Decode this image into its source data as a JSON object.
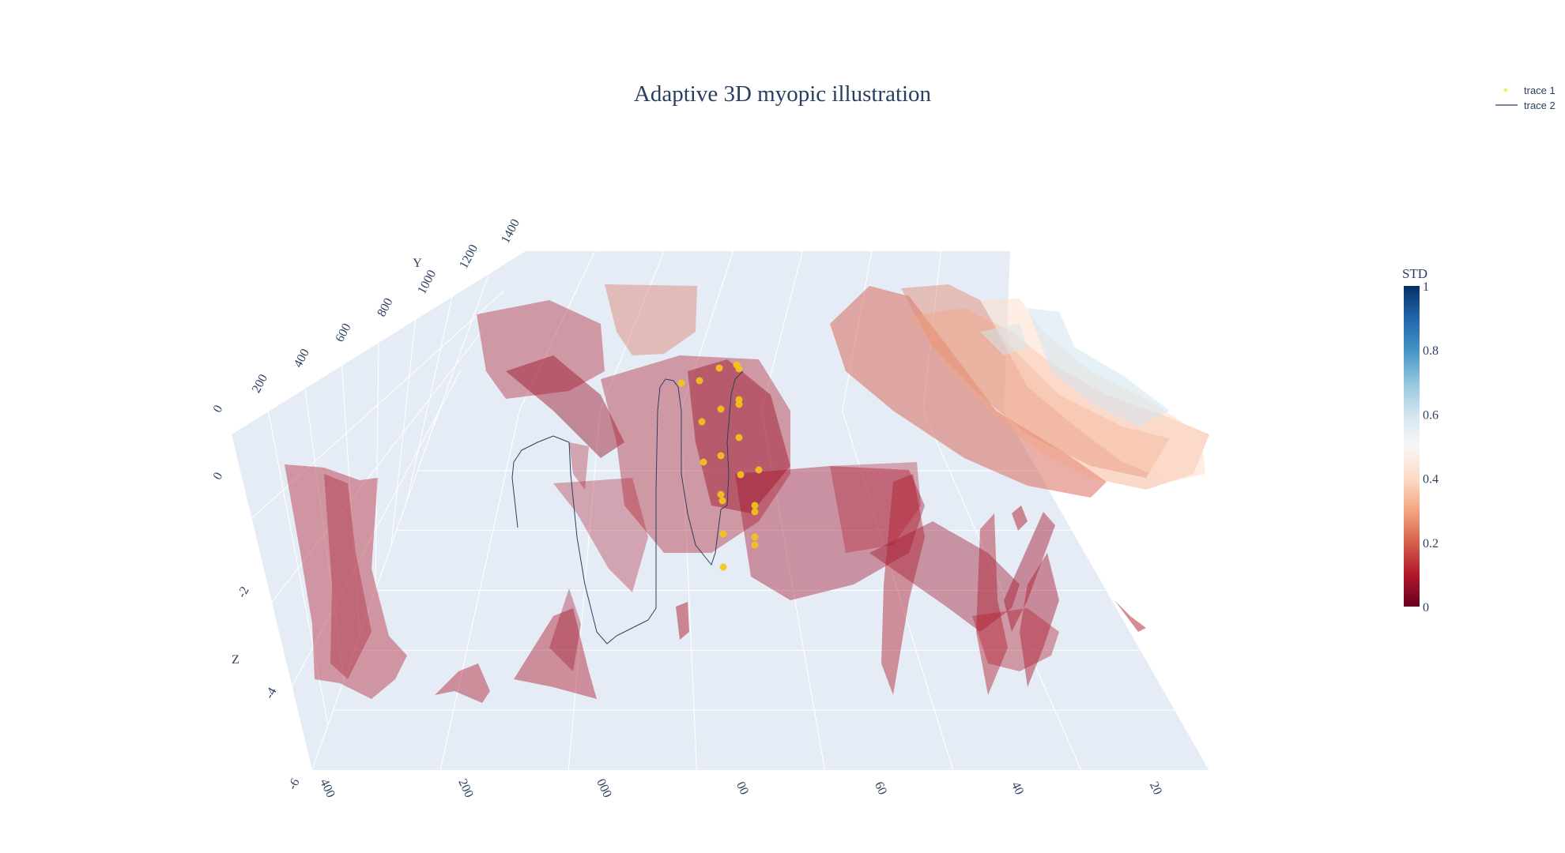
{
  "chart_data": {
    "type": "surface3d",
    "title": "Adaptive 3D myopic illustration",
    "axes": {
      "x": {
        "label": "",
        "ticks": [
          "400",
          "200",
          "000",
          "00",
          "60",
          "40",
          "20"
        ]
      },
      "y": {
        "label": "Y",
        "ticks": [
          "0",
          "200",
          "400",
          "600",
          "800",
          "1000",
          "1200",
          "1400"
        ]
      },
      "z": {
        "label": "Z",
        "ticks": [
          "0",
          "-2",
          "-4",
          "-6"
        ]
      }
    },
    "legend": {
      "position": "top-right",
      "entries": [
        {
          "name": "trace 1",
          "symbol": "marker",
          "color": "#f2ee6b"
        },
        {
          "name": "trace 2",
          "symbol": "line",
          "color": "#2a3f5f"
        }
      ]
    },
    "colorbar": {
      "title": "STD",
      "range": [
        0,
        1
      ],
      "ticks": [
        "0",
        "0.2",
        "0.4",
        "0.6",
        "0.8",
        "1"
      ],
      "colorscale": [
        "#67001f",
        "#b2182b",
        "#d6604d",
        "#f4a582",
        "#fddbc7",
        "#f7f7f7",
        "#d1e5f0",
        "#92c5de",
        "#4393c3",
        "#2166ac",
        "#053061"
      ]
    },
    "scene_background": "#e5ecf6",
    "gridline_color": "#ffffff",
    "marker_color": "#f5c518",
    "line_color": "#2a3f5f"
  }
}
